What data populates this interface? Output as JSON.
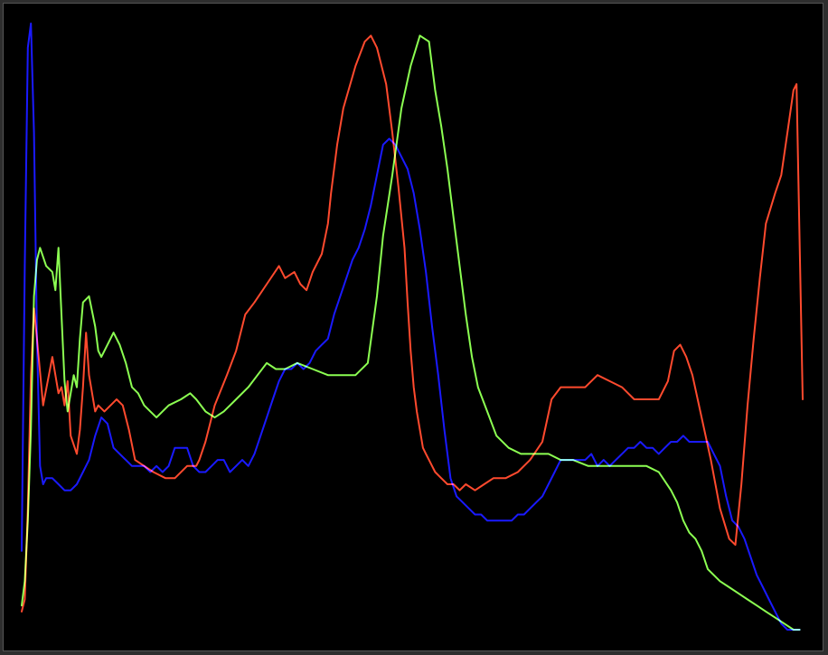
{
  "chart_data": {
    "type": "line",
    "title": "",
    "xlabel": "",
    "ylabel": "",
    "grid": false,
    "legend": "none",
    "xlim": [
      0,
      255
    ],
    "ylim": [
      0,
      100
    ],
    "series": [
      {
        "color": "#ff4a2e",
        "x": [
          0,
          1,
          2,
          3,
          4,
          5,
          7,
          10,
          12,
          13,
          14,
          15,
          16,
          18,
          19,
          20,
          21,
          22,
          24,
          25,
          27,
          29,
          31,
          33,
          35,
          37,
          40,
          43,
          47,
          50,
          54,
          57,
          58,
          60,
          63,
          67,
          70,
          73,
          76,
          80,
          84,
          86,
          89,
          91,
          93,
          95,
          98,
          100,
          101,
          103,
          105,
          109,
          112,
          114,
          116,
          119,
          121,
          123,
          125,
          126,
          127,
          128,
          129,
          130,
          131,
          132,
          133,
          134,
          135,
          137,
          139,
          141,
          143,
          145,
          148,
          151,
          154,
          158,
          162,
          166,
          170,
          173,
          176,
          179,
          181,
          184,
          188,
          192,
          196,
          200,
          204,
          208,
          211,
          213,
          215,
          217,
          219,
          222,
          225,
          228,
          231,
          233,
          235,
          237,
          239,
          241,
          243,
          246,
          248,
          250,
          252,
          253,
          255
        ],
        "y": [
          3,
          5,
          20,
          42,
          53,
          48,
          37,
          45,
          39,
          40,
          37,
          41,
          32,
          29,
          33,
          40,
          49,
          42,
          36,
          37,
          36,
          37,
          38,
          37,
          33,
          28,
          27,
          26,
          25,
          25,
          27,
          27,
          28,
          31,
          37,
          42,
          46,
          52,
          54,
          57,
          60,
          58,
          59,
          57,
          56,
          59,
          62,
          67,
          72,
          80,
          86,
          93,
          97,
          98,
          96,
          90,
          82,
          73,
          63,
          54,
          46,
          40,
          36,
          33,
          30,
          29,
          28,
          27,
          26,
          25,
          24,
          24,
          23,
          24,
          23,
          24,
          25,
          25,
          26,
          28,
          31,
          38,
          40,
          40,
          40,
          40,
          42,
          41,
          40,
          38,
          38,
          38,
          41,
          46,
          47,
          45,
          42,
          35,
          28,
          20,
          15,
          14,
          24,
          37,
          48,
          58,
          67,
          72,
          75,
          82,
          89,
          90,
          38
        ]
      },
      {
        "color": "#8cff52",
        "x": [
          0,
          1,
          2,
          3,
          4,
          5,
          6,
          8,
          10,
          11,
          12,
          13,
          14,
          15,
          16,
          17,
          18,
          19,
          20,
          22,
          24,
          25,
          26,
          27,
          28,
          30,
          32,
          34,
          36,
          38,
          40,
          42,
          44,
          48,
          52,
          55,
          57,
          60,
          63,
          66,
          70,
          74,
          77,
          80,
          83,
          86,
          90,
          95,
          100,
          105,
          109,
          113,
          116,
          118,
          121,
          124,
          127,
          130,
          133,
          135,
          137,
          139,
          141,
          143,
          145,
          147,
          149,
          152,
          155,
          159,
          163,
          168,
          172,
          176,
          180,
          185,
          190,
          195,
          200,
          204,
          208,
          212,
          214,
          216,
          218,
          220,
          222,
          224,
          226,
          228,
          231,
          234,
          237,
          240,
          243,
          246,
          249,
          252,
          254
        ],
        "y": [
          4,
          8,
          18,
          33,
          55,
          61,
          63,
          60,
          59,
          56,
          63,
          52,
          41,
          36,
          39,
          42,
          40,
          48,
          54,
          55,
          50,
          46,
          45,
          46,
          47,
          49,
          47,
          44,
          40,
          39,
          37,
          36,
          35,
          37,
          38,
          39,
          38,
          36,
          35,
          36,
          38,
          40,
          42,
          44,
          43,
          43,
          44,
          43,
          42,
          42,
          42,
          44,
          55,
          65,
          75,
          86,
          93,
          98,
          97,
          89,
          83,
          76,
          68,
          60,
          52,
          45,
          40,
          36,
          32,
          30,
          29,
          29,
          29,
          28,
          28,
          27,
          27,
          27,
          27,
          27,
          26,
          23,
          21,
          18,
          16,
          15,
          13,
          10,
          9,
          8,
          7,
          6,
          5,
          4,
          3,
          2,
          1,
          0,
          0
        ]
      },
      {
        "color": "#1a1aff",
        "x": [
          0,
          1,
          2,
          3,
          4,
          5,
          6,
          7,
          8,
          9,
          10,
          12,
          14,
          16,
          18,
          20,
          22,
          24,
          26,
          28,
          30,
          32,
          34,
          36,
          38,
          40,
          42,
          44,
          46,
          48,
          50,
          52,
          54,
          56,
          58,
          60,
          62,
          64,
          66,
          68,
          70,
          72,
          74,
          76,
          78,
          80,
          82,
          84,
          86,
          88,
          90,
          92,
          94,
          96,
          98,
          100,
          102,
          104,
          106,
          108,
          110,
          112,
          114,
          116,
          118,
          120,
          122,
          124,
          126,
          128,
          130,
          132,
          134,
          136,
          138,
          140,
          142,
          144,
          146,
          148,
          150,
          152,
          154,
          156,
          158,
          160,
          162,
          164,
          166,
          168,
          170,
          172,
          174,
          176,
          178,
          180,
          182,
          184,
          186,
          188,
          190,
          192,
          194,
          196,
          198,
          200,
          202,
          204,
          206,
          208,
          210,
          212,
          214,
          216,
          218,
          220,
          222,
          224,
          226,
          228,
          230,
          232,
          234,
          236,
          238,
          240,
          242,
          244,
          246,
          248,
          250,
          252,
          254
        ],
        "y": [
          13,
          60,
          96,
          100,
          82,
          48,
          27,
          24,
          25,
          25,
          25,
          24,
          23,
          23,
          24,
          26,
          28,
          32,
          35,
          34,
          30,
          29,
          28,
          27,
          27,
          27,
          26,
          27,
          26,
          27,
          30,
          30,
          30,
          27,
          26,
          26,
          27,
          28,
          28,
          26,
          27,
          28,
          27,
          29,
          32,
          35,
          38,
          41,
          43,
          43,
          44,
          43,
          44,
          46,
          47,
          48,
          52,
          55,
          58,
          61,
          63,
          66,
          70,
          75,
          80,
          81,
          80,
          78,
          76,
          72,
          66,
          59,
          50,
          42,
          33,
          25,
          22,
          21,
          20,
          19,
          19,
          18,
          18,
          18,
          18,
          18,
          19,
          19,
          20,
          21,
          22,
          24,
          26,
          28,
          28,
          28,
          28,
          28,
          29,
          27,
          28,
          27,
          28,
          29,
          30,
          30,
          31,
          30,
          30,
          29,
          30,
          31,
          31,
          32,
          31,
          31,
          31,
          31,
          29,
          27,
          22,
          18,
          17,
          15,
          12,
          9,
          7,
          5,
          3,
          1,
          0,
          0,
          0
        ]
      }
    ]
  }
}
